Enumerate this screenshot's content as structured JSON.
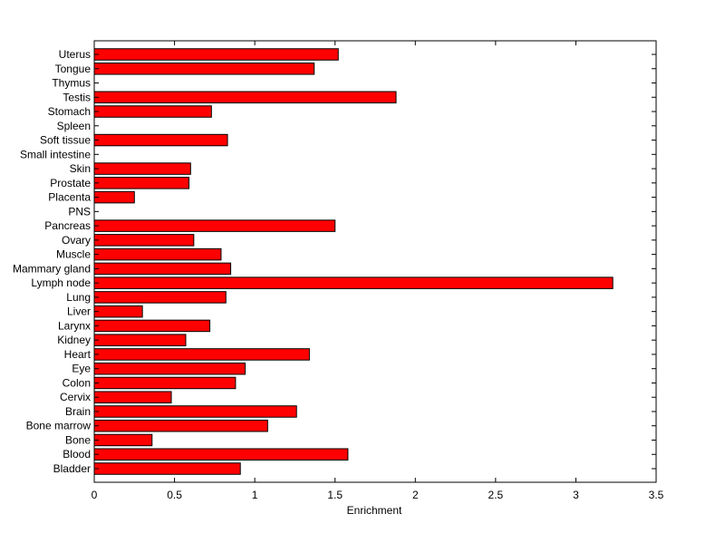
{
  "chart_data": {
    "type": "bar",
    "orientation": "horizontal",
    "title": "",
    "xlabel": "Enrichment",
    "ylabel": "",
    "xlim": [
      0,
      3.5
    ],
    "xticks": [
      "0",
      "0.5",
      "1",
      "1.5",
      "2",
      "2.5",
      "3",
      "3.5"
    ],
    "grid": false,
    "bar_color": "#ff0000",
    "bar_edge_color": "#000000",
    "categories": [
      "Bladder",
      "Blood",
      "Bone",
      "Bone marrow",
      "Brain",
      "Cervix",
      "Colon",
      "Eye",
      "Heart",
      "Kidney",
      "Larynx",
      "Liver",
      "Lung",
      "Lymph node",
      "Mammary gland",
      "Muscle",
      "Ovary",
      "Pancreas",
      "PNS",
      "Placenta",
      "Prostate",
      "Skin",
      "Small intestine",
      "Soft tissue",
      "Spleen",
      "Stomach",
      "Testis",
      "Thymus",
      "Tongue",
      "Uterus"
    ],
    "values": [
      0.91,
      1.58,
      0.36,
      1.08,
      1.26,
      0.48,
      0.88,
      0.94,
      1.34,
      0.57,
      0.72,
      0.3,
      0.82,
      3.23,
      0.85,
      0.79,
      0.62,
      1.5,
      0,
      0.25,
      0.59,
      0.6,
      0,
      0.83,
      0,
      0.73,
      1.88,
      0,
      1.37,
      1.52
    ]
  }
}
